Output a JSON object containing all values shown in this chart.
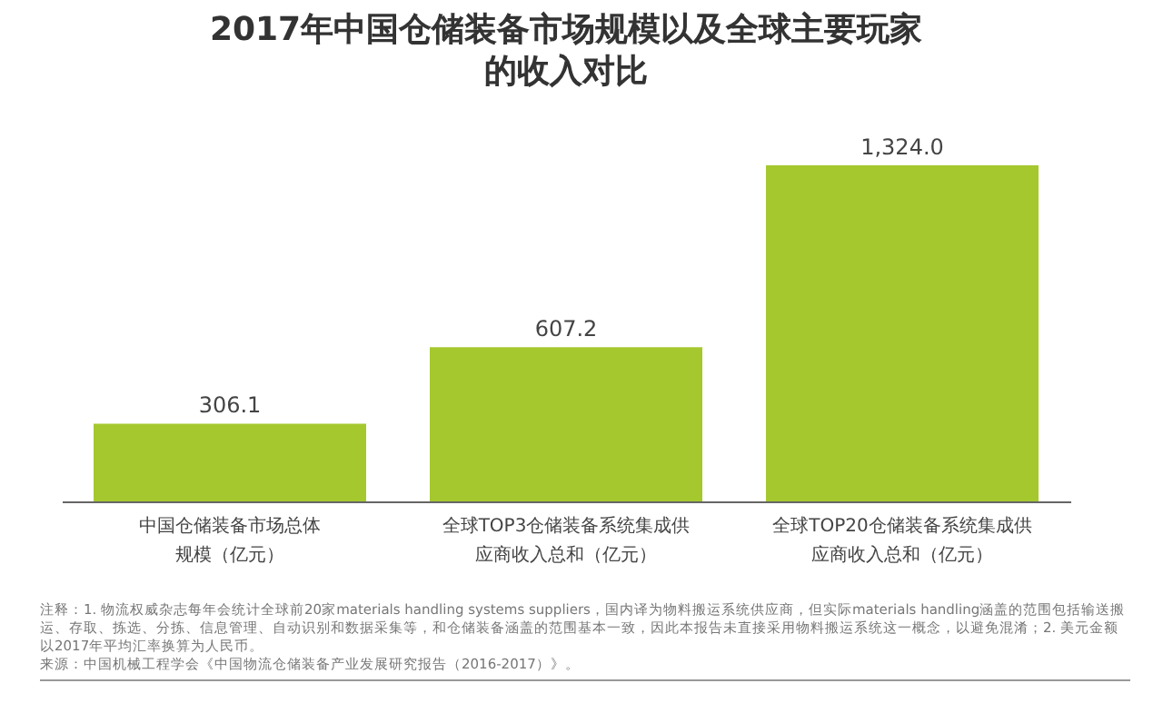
{
  "chart_data": {
    "type": "bar",
    "title": "2017年中国仓储装备市场规模以及全球主要玩家的收入对比",
    "categories": [
      "中国仓储装备市场总体规模（亿元）",
      "全球TOP3仓储装备系统集成供应商收入总和（亿元）",
      "全球TOP20仓储装备系统集成供应商收入总和（亿元）"
    ],
    "values": [
      306.1,
      607.2,
      1324.0
    ],
    "value_labels": [
      "306.1",
      "607.2",
      "1,324.0"
    ],
    "color": "#a5c82f",
    "annotations": [
      "注释：1. 物流权威杂志每年会统计全球前20家materials handling systems suppliers，国内译为物料搬运系统供应商，但实际materials handling涵盖的范围包括输送搬运、存取、拣选、分拣、信息管理、自动识别和数据采集等，和仓储装备涵盖的范围基本一致，因此本报告未直接采用物料搬运系统这一概念，以避免混淆；2. 美元金额以2017年平均汇率换算为人民币。",
      "来源：中国机械工程学会《中国物流仓储装备产业发展研究报告（2016-2017）》。"
    ]
  }
}
